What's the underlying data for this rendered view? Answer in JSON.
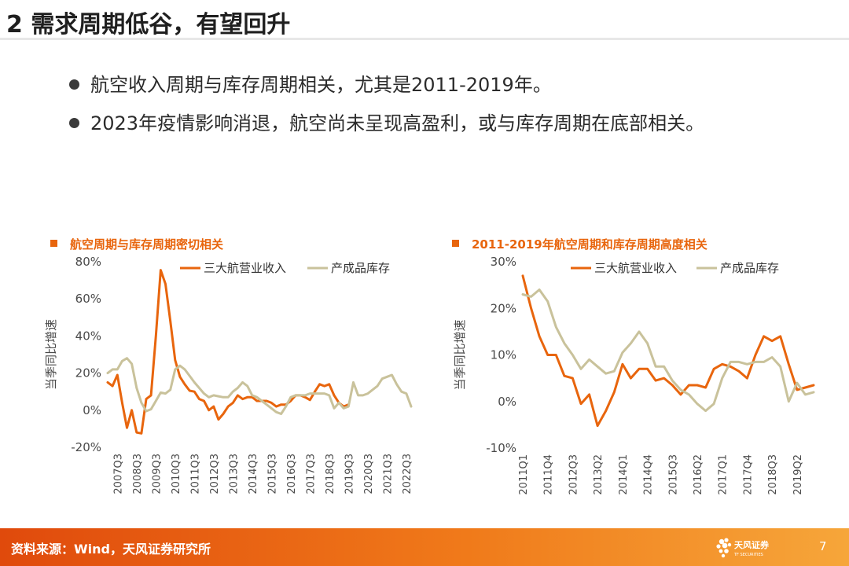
{
  "page_title": "2 需求周期低谷，有望回升",
  "bullets": [
    "航空收入周期与库存周期相关，尤其是2011-2019年。",
    "2023年疫情影响消退，航空尚未呈现高盈利，或与库存周期在底部相关。"
  ],
  "footer": {
    "source": "资料来源：Wind，天风证券研究所",
    "logo_text": "天风证券",
    "logo_subtext": "TF SECURITIES",
    "page_number": "7"
  },
  "colors": {
    "revenue": "#E8650D",
    "inventory": "#C9C29B",
    "accent": "#E8650D"
  },
  "chart_data": [
    {
      "type": "line",
      "title": "航空周期与库存周期密切相关",
      "ylabel": "当季同比增速",
      "ylim": [
        -0.2,
        0.8
      ],
      "yticks": [
        "-20%",
        "0%",
        "20%",
        "40%",
        "60%",
        "80%"
      ],
      "xticks": [
        "2007Q3",
        "2008Q3",
        "2009Q3",
        "2010Q3",
        "2011Q3",
        "2012Q3",
        "2013Q3",
        "2014Q3",
        "2015Q3",
        "2016Q3",
        "2017Q3",
        "2018Q3",
        "2019Q3",
        "2020Q3",
        "2021Q3",
        "2022Q3"
      ],
      "x_start": "2007Q1",
      "legend": "top-right",
      "series": [
        {
          "name": "三大航营业收入",
          "values": [
            0.15,
            0.13,
            0.19,
            0.04,
            -0.095,
            0.0,
            -0.12,
            -0.125,
            0.06,
            0.08,
            0.4,
            0.755,
            0.68,
            0.48,
            0.27,
            0.18,
            0.14,
            0.105,
            0.1,
            0.06,
            0.05,
            0.0,
            0.02,
            -0.05,
            -0.02,
            0.02,
            0.04,
            0.08,
            0.06,
            0.07,
            0.07,
            0.05,
            0.05,
            0.05,
            0.04,
            0.02,
            0.03,
            0.03,
            0.05,
            0.08,
            0.08,
            0.07,
            0.055,
            0.1,
            0.14,
            0.13,
            0.14,
            0.08,
            0.04,
            0.02,
            0.03
          ]
        },
        {
          "name": "产成品库存",
          "values": [
            0.2,
            0.22,
            0.22,
            0.265,
            0.28,
            0.25,
            0.12,
            0.04,
            -0.005,
            0.005,
            0.05,
            0.095,
            0.09,
            0.11,
            0.22,
            0.24,
            0.22,
            0.185,
            0.15,
            0.12,
            0.09,
            0.07,
            0.08,
            0.075,
            0.07,
            0.07,
            0.1,
            0.12,
            0.15,
            0.13,
            0.08,
            0.07,
            0.05,
            0.03,
            0.01,
            -0.01,
            -0.02,
            0.02,
            0.07,
            0.08,
            0.08,
            0.08,
            0.09,
            0.09,
            0.09,
            0.09,
            0.08,
            0.01,
            0.04,
            0.01,
            0.02,
            0.15,
            0.08,
            0.08,
            0.09,
            0.11,
            0.13,
            0.17,
            0.18,
            0.19,
            0.14,
            0.1,
            0.09,
            0.02
          ]
        }
      ]
    },
    {
      "type": "line",
      "title": "2011-2019年航空周期和库存周期高度相关",
      "ylabel": "当季同比增速",
      "ylim": [
        -0.1,
        0.3
      ],
      "yticks": [
        "-10%",
        "0%",
        "10%",
        "20%",
        "30%"
      ],
      "xticks": [
        "2011Q1",
        "2011Q4",
        "2012Q3",
        "2013Q2",
        "2014Q1",
        "2014Q4",
        "2015Q3",
        "2016Q2",
        "2017Q1",
        "2017Q4",
        "2018Q3",
        "2019Q2"
      ],
      "x_start": "2011Q1",
      "legend": "top-right",
      "series": [
        {
          "name": "三大航营业收入",
          "values": [
            0.27,
            0.2,
            0.14,
            0.1,
            0.1,
            0.055,
            0.05,
            -0.005,
            0.015,
            -0.052,
            -0.02,
            0.02,
            0.08,
            0.05,
            0.07,
            0.07,
            0.045,
            0.05,
            0.035,
            0.015,
            0.035,
            0.035,
            0.03,
            0.07,
            0.08,
            0.075,
            0.065,
            0.05,
            0.1,
            0.14,
            0.13,
            0.14,
            0.08,
            0.025,
            0.03,
            0.035
          ]
        },
        {
          "name": "产成品库存",
          "values": [
            0.23,
            0.225,
            0.24,
            0.215,
            0.16,
            0.125,
            0.1,
            0.07,
            0.09,
            0.075,
            0.06,
            0.065,
            0.105,
            0.125,
            0.15,
            0.125,
            0.075,
            0.075,
            0.045,
            0.025,
            0.015,
            -0.005,
            -0.02,
            -0.005,
            0.05,
            0.085,
            0.085,
            0.08,
            0.085,
            0.085,
            0.095,
            0.075,
            0.0,
            0.04,
            0.015,
            0.02
          ]
        }
      ]
    }
  ]
}
